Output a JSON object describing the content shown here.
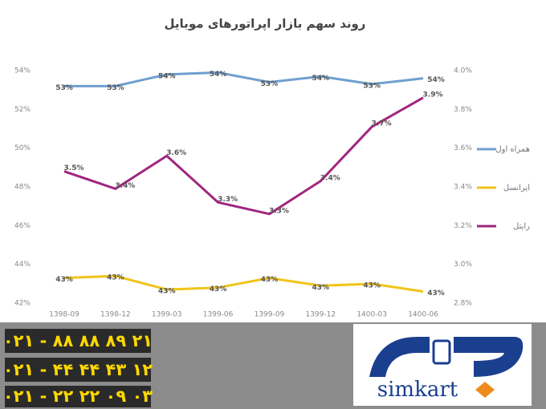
{
  "chart_data": {
    "type": "line",
    "title": "روند سهم بازار اپراتورهای موبایل",
    "categories": [
      "1398-09",
      "1398-12",
      "1399-03",
      "1399-06",
      "1399-09",
      "1399-12",
      "1400-03",
      "1400-06"
    ],
    "series": [
      {
        "name": "همراه اول",
        "color": "#6f9fd0",
        "axis": "y",
        "values": [
          53.2,
          53.2,
          53.8,
          53.9,
          53.4,
          53.7,
          53.3,
          53.6
        ],
        "value_labels": [
          "53%",
          "53%",
          "54%",
          "54%",
          "53%",
          "54%",
          "53%",
          "54%"
        ]
      },
      {
        "name": "ایرانسل",
        "color": "#f0c419",
        "axis": "y",
        "values": [
          43.3,
          43.4,
          42.7,
          42.8,
          43.3,
          42.9,
          43.0,
          42.6
        ],
        "value_labels": [
          "43%",
          "43%",
          "43%",
          "43%",
          "43%",
          "43%",
          "43%",
          "43%"
        ]
      },
      {
        "name": "رایتل",
        "color": "#a0267f",
        "axis": "y2",
        "values": [
          3.48,
          3.39,
          3.56,
          3.32,
          3.26,
          3.43,
          3.71,
          3.86
        ],
        "value_labels": [
          "3.5%",
          "3.4%",
          "3.6%",
          "3.3%",
          "3.3%",
          "3.4%",
          "3.7%",
          "3.9%"
        ]
      }
    ],
    "ylim": [
      42,
      54
    ],
    "yticks": [
      {
        "value": 42,
        "label": "42%"
      },
      {
        "value": 44,
        "label": "44%"
      },
      {
        "value": 46,
        "label": "46%"
      },
      {
        "value": 48,
        "label": "48%"
      },
      {
        "value": 50,
        "label": "50%"
      },
      {
        "value": 52,
        "label": "52%"
      },
      {
        "value": 54,
        "label": "54%"
      }
    ],
    "y2lim": [
      2.8,
      4.0
    ],
    "y2ticks": [
      {
        "value": 2.8,
        "label": "2.8%"
      },
      {
        "value": 3.0,
        "label": "3.0%"
      },
      {
        "value": 3.2,
        "label": "3.2%"
      },
      {
        "value": 3.4,
        "label": "3.4%"
      },
      {
        "value": 3.6,
        "label": "3.6%"
      },
      {
        "value": 3.8,
        "label": "3.8%"
      },
      {
        "value": 4.0,
        "label": "4.0%"
      }
    ],
    "legend": "right"
  },
  "banner": {
    "phones": [
      "۰۲۱ - ۸۸ ۸۸ ۸۹ ۲۱",
      "۰۲۱ - ۴۴ ۴۴ ۴۳ ۱۲",
      "۰۲۱ - ۲۲ ۲۲ ۰۹ ۰۳"
    ],
    "brand": "simkart"
  }
}
